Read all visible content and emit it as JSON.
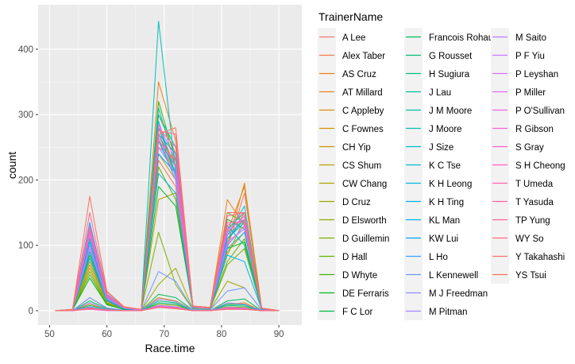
{
  "chart_data": {
    "type": "line",
    "title": "",
    "xlabel": "Race.time",
    "ylabel": "count",
    "xlim": [
      48,
      94
    ],
    "ylim": [
      -22,
      468
    ],
    "x_ticks": [
      50,
      60,
      70,
      80,
      90
    ],
    "y_ticks": [
      0,
      100,
      200,
      300,
      400
    ],
    "grid": true,
    "legend_position": "right",
    "legend_title": "TrainerName",
    "x": [
      51,
      54,
      57,
      60,
      63,
      66,
      69,
      72,
      75,
      78,
      81,
      84,
      87,
      90
    ],
    "series": [
      {
        "name": "A Lee",
        "color": "#F8766D",
        "values": [
          0,
          1,
          120,
          25,
          5,
          2,
          250,
          230,
          6,
          4,
          95,
          180,
          4,
          0
        ]
      },
      {
        "name": "Alex Taber",
        "color": "#F47A4A",
        "values": [
          0,
          0,
          80,
          15,
          3,
          1,
          230,
          190,
          5,
          3,
          110,
          140,
          3,
          0
        ]
      },
      {
        "name": "AS Cruz",
        "color": "#EF7F1A",
        "values": [
          0,
          2,
          110,
          20,
          5,
          2,
          350,
          260,
          7,
          5,
          100,
          195,
          4,
          0
        ]
      },
      {
        "name": "AT Millard",
        "color": "#E7851E",
        "values": [
          0,
          1,
          95,
          18,
          4,
          2,
          300,
          240,
          6,
          4,
          170,
          130,
          3,
          0
        ]
      },
      {
        "name": "C Appleby",
        "color": "#DE8C00",
        "values": [
          0,
          0,
          10,
          2,
          0,
          0,
          20,
          15,
          1,
          0,
          10,
          12,
          0,
          0
        ]
      },
      {
        "name": "C Fownes",
        "color": "#D49200",
        "values": [
          0,
          1,
          85,
          16,
          4,
          1,
          280,
          220,
          5,
          4,
          120,
          190,
          3,
          0
        ]
      },
      {
        "name": "CH Yip",
        "color": "#C99800",
        "values": [
          0,
          1,
          70,
          14,
          3,
          1,
          240,
          200,
          5,
          3,
          105,
          150,
          3,
          0
        ]
      },
      {
        "name": "CS Shum",
        "color": "#BC9D00",
        "values": [
          0,
          1,
          75,
          14,
          3,
          1,
          170,
          180,
          4,
          3,
          90,
          120,
          3,
          0
        ]
      },
      {
        "name": "CW Chang",
        "color": "#AEA200",
        "values": [
          0,
          1,
          65,
          12,
          3,
          1,
          260,
          210,
          5,
          3,
          85,
          140,
          2,
          0
        ]
      },
      {
        "name": "D Cruz",
        "color": "#9EA700",
        "values": [
          0,
          0,
          20,
          4,
          1,
          0,
          40,
          65,
          2,
          1,
          45,
          35,
          1,
          0
        ]
      },
      {
        "name": "D Elsworth",
        "color": "#8DAB00",
        "values": [
          0,
          0,
          5,
          1,
          0,
          0,
          10,
          8,
          0,
          0,
          6,
          5,
          0,
          0
        ]
      },
      {
        "name": "D Guillemin",
        "color": "#79AF00",
        "values": [
          0,
          1,
          60,
          11,
          2,
          1,
          120,
          40,
          2,
          2,
          70,
          95,
          2,
          0
        ]
      },
      {
        "name": "D Hall",
        "color": "#60B200",
        "values": [
          0,
          1,
          55,
          10,
          2,
          1,
          220,
          170,
          4,
          3,
          75,
          110,
          2,
          0
        ]
      },
      {
        "name": "D Whyte",
        "color": "#3CB500",
        "values": [
          0,
          1,
          90,
          17,
          4,
          1,
          320,
          230,
          6,
          4,
          150,
          135,
          3,
          0
        ]
      },
      {
        "name": "DE Ferraris",
        "color": "#00B81F",
        "values": [
          0,
          1,
          50,
          9,
          2,
          1,
          190,
          160,
          4,
          3,
          95,
          105,
          2,
          0
        ]
      },
      {
        "name": "F C Lor",
        "color": "#00BA42",
        "values": [
          0,
          1,
          85,
          15,
          4,
          1,
          270,
          210,
          5,
          4,
          140,
          125,
          3,
          0
        ]
      },
      {
        "name": "Francois Rohaut",
        "color": "#00BC5C",
        "values": [
          0,
          0,
          15,
          3,
          1,
          0,
          25,
          20,
          1,
          0,
          15,
          18,
          0,
          0
        ]
      },
      {
        "name": "G Rousset",
        "color": "#00BE72",
        "values": [
          0,
          0,
          8,
          2,
          0,
          0,
          15,
          12,
          0,
          0,
          10,
          9,
          0,
          0
        ]
      },
      {
        "name": "H Sugiura",
        "color": "#00BF86",
        "values": [
          0,
          0,
          6,
          1,
          0,
          0,
          12,
          10,
          0,
          0,
          8,
          7,
          0,
          0
        ]
      },
      {
        "name": "J Lau",
        "color": "#00C098",
        "values": [
          0,
          1,
          100,
          19,
          4,
          2,
          310,
          220,
          6,
          4,
          125,
          150,
          3,
          0
        ]
      },
      {
        "name": "J M Moore",
        "color": "#00C1A9",
        "values": [
          0,
          1,
          115,
          22,
          5,
          2,
          280,
          210,
          6,
          4,
          110,
          140,
          3,
          0
        ]
      },
      {
        "name": "J Moore",
        "color": "#00C0B8",
        "values": [
          0,
          2,
          130,
          24,
          5,
          2,
          443,
          210,
          7,
          5,
          130,
          100,
          3,
          0
        ]
      },
      {
        "name": "J Size",
        "color": "#00BFC7",
        "values": [
          0,
          1,
          125,
          23,
          5,
          2,
          300,
          250,
          6,
          4,
          115,
          160,
          3,
          0
        ]
      },
      {
        "name": "K C Tse",
        "color": "#00BCD4",
        "values": [
          0,
          1,
          110,
          20,
          4,
          2,
          290,
          205,
          6,
          4,
          100,
          130,
          3,
          0
        ]
      },
      {
        "name": "K H  Leong",
        "color": "#00B8E1",
        "values": [
          0,
          1,
          90,
          17,
          4,
          1,
          260,
          200,
          5,
          3,
          95,
          120,
          3,
          0
        ]
      },
      {
        "name": "K H Ting",
        "color": "#00B4EC",
        "values": [
          0,
          1,
          80,
          15,
          3,
          1,
          210,
          180,
          5,
          3,
          85,
          75,
          2,
          0
        ]
      },
      {
        "name": "KL Man",
        "color": "#00AEF6",
        "values": [
          0,
          1,
          135,
          25,
          5,
          2,
          270,
          240,
          6,
          4,
          120,
          145,
          3,
          0
        ]
      },
      {
        "name": "KW Lui",
        "color": "#00A8FF",
        "values": [
          0,
          1,
          105,
          20,
          4,
          2,
          240,
          210,
          5,
          4,
          110,
          135,
          3,
          0
        ]
      },
      {
        "name": "L Ho",
        "color": "#3DA1FF",
        "values": [
          0,
          1,
          120,
          22,
          5,
          2,
          260,
          220,
          6,
          4,
          115,
          140,
          3,
          0
        ]
      },
      {
        "name": "L Kennewell",
        "color": "#7098FF",
        "values": [
          0,
          0,
          20,
          4,
          1,
          0,
          60,
          45,
          2,
          1,
          30,
          35,
          1,
          0
        ]
      },
      {
        "name": "M J Freedman",
        "color": "#8F8FFF",
        "values": [
          0,
          1,
          95,
          18,
          4,
          1,
          250,
          210,
          5,
          3,
          105,
          125,
          3,
          0
        ]
      },
      {
        "name": "M Pitman",
        "color": "#A886FF",
        "values": [
          0,
          0,
          12,
          2,
          0,
          0,
          18,
          14,
          1,
          0,
          12,
          10,
          0,
          0
        ]
      },
      {
        "name": "M Saito",
        "color": "#BB7EFF",
        "values": [
          0,
          0,
          5,
          1,
          0,
          0,
          8,
          6,
          0,
          0,
          5,
          4,
          0,
          0
        ]
      },
      {
        "name": "P F Yiu",
        "color": "#CC76FF",
        "values": [
          0,
          1,
          100,
          19,
          4,
          1,
          265,
          200,
          5,
          4,
          100,
          130,
          3,
          0
        ]
      },
      {
        "name": "P Leyshan",
        "color": "#DA6FF9",
        "values": [
          0,
          0,
          4,
          1,
          0,
          0,
          7,
          5,
          0,
          0,
          4,
          3,
          0,
          0
        ]
      },
      {
        "name": "P Miller",
        "color": "#E66AF1",
        "values": [
          0,
          0,
          3,
          1,
          0,
          0,
          6,
          4,
          0,
          0,
          3,
          3,
          0,
          0
        ]
      },
      {
        "name": "P O'Sullivan",
        "color": "#F065E7",
        "values": [
          0,
          1,
          115,
          21,
          5,
          2,
          285,
          230,
          6,
          4,
          125,
          140,
          3,
          0
        ]
      },
      {
        "name": "R Gibson",
        "color": "#F763DB",
        "values": [
          0,
          1,
          120,
          22,
          5,
          2,
          270,
          220,
          6,
          4,
          120,
          145,
          3,
          0
        ]
      },
      {
        "name": "S Gray",
        "color": "#FC62CE",
        "values": [
          0,
          0,
          2,
          0,
          0,
          0,
          5,
          3,
          0,
          0,
          2,
          2,
          0,
          0
        ]
      },
      {
        "name": "S H Cheong",
        "color": "#FF61C0",
        "values": [
          0,
          1,
          130,
          24,
          5,
          2,
          280,
          250,
          7,
          4,
          130,
          150,
          3,
          0
        ]
      },
      {
        "name": "T Umeda",
        "color": "#FF62B1",
        "values": [
          0,
          0,
          4,
          1,
          0,
          0,
          6,
          5,
          0,
          0,
          4,
          3,
          0,
          0
        ]
      },
      {
        "name": "T Yasuda",
        "color": "#FF64A2",
        "values": [
          0,
          0,
          3,
          1,
          0,
          0,
          5,
          4,
          0,
          0,
          3,
          2,
          0,
          0
        ]
      },
      {
        "name": "TP Yung",
        "color": "#FF6792",
        "values": [
          0,
          2,
          150,
          28,
          6,
          2,
          275,
          270,
          7,
          5,
          145,
          150,
          4,
          0
        ]
      },
      {
        "name": "WY So",
        "color": "#FF6C82",
        "values": [
          0,
          1,
          125,
          23,
          5,
          2,
          260,
          230,
          6,
          4,
          135,
          135,
          3,
          0
        ]
      },
      {
        "name": "Y Takahashi",
        "color": "#FC7173",
        "values": [
          0,
          0,
          3,
          1,
          0,
          0,
          5,
          3,
          0,
          0,
          2,
          2,
          0,
          0
        ]
      },
      {
        "name": "YS Tsui",
        "color": "#F9745F",
        "values": [
          0,
          2,
          175,
          30,
          6,
          2,
          270,
          280,
          7,
          5,
          150,
          150,
          4,
          0
        ]
      }
    ]
  }
}
